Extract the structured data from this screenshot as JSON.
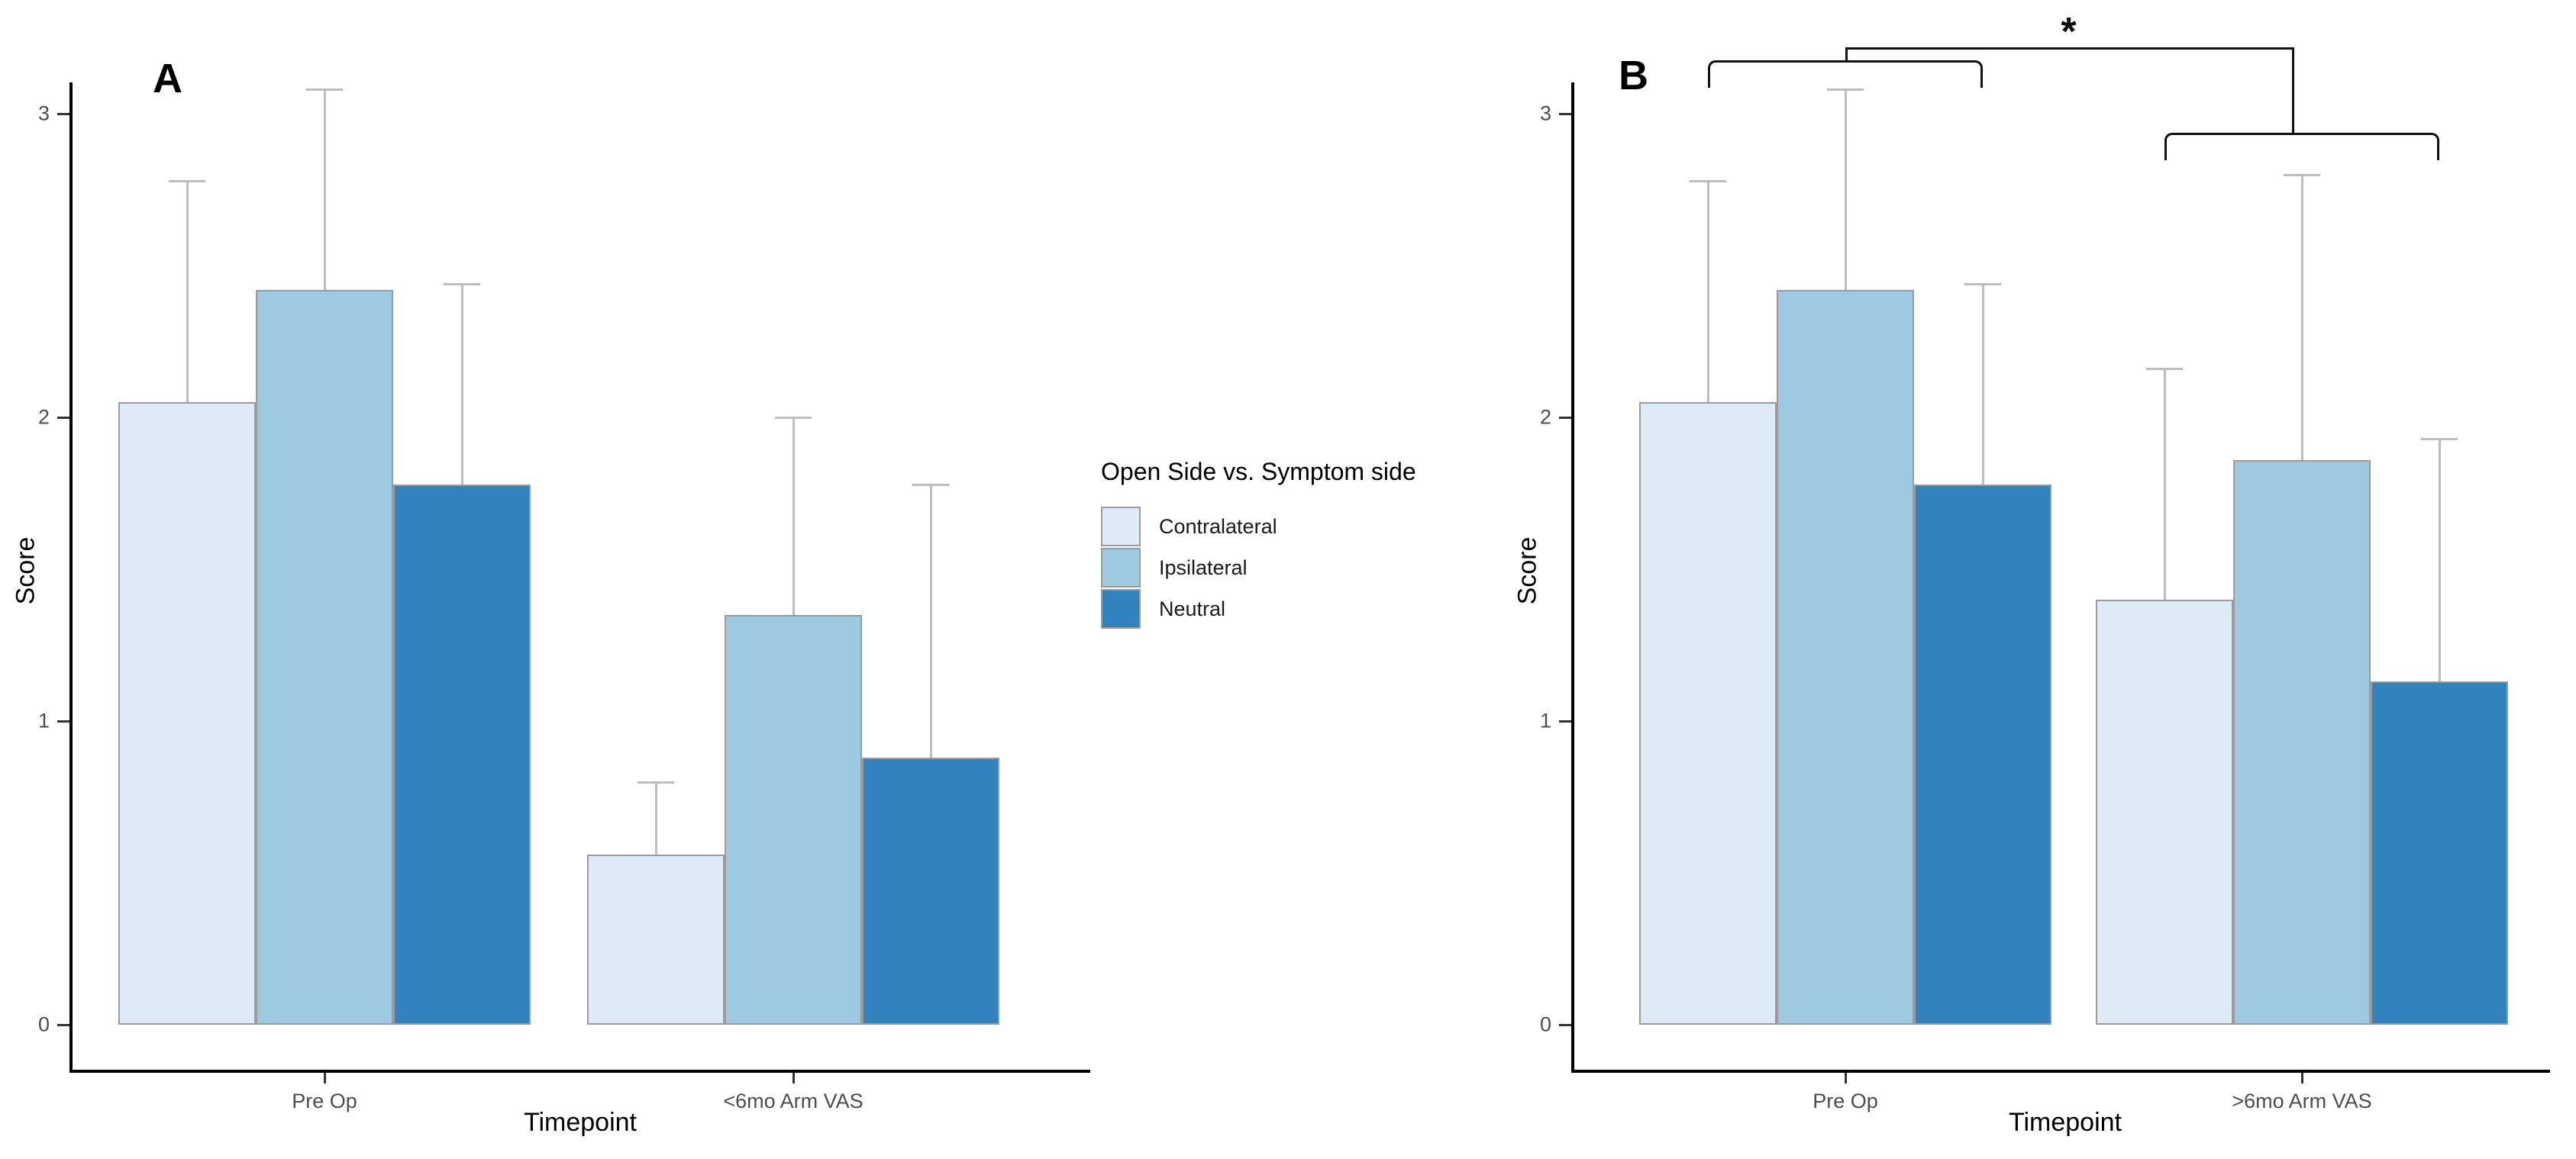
{
  "page": {
    "background": "#ffffff"
  },
  "legend": {
    "title": "Open Side vs. Symptom side",
    "items": [
      {
        "label": "Contralateral",
        "color": "#DEEBF7"
      },
      {
        "label": "Ipsilateral",
        "color": "#9ECAE1"
      },
      {
        "label": "Neutral",
        "color": "#3182BD"
      }
    ]
  },
  "panels": [
    {
      "letter": "A",
      "xlabel": "Timepoint",
      "ylabel": "Score"
    },
    {
      "letter": "B",
      "xlabel": "Timepoint",
      "ylabel": "Score"
    }
  ],
  "style": {
    "axis_color": "#000000",
    "tick_label_color": "#4d4d4d",
    "bar_border_color": "#9b9b9b",
    "error_bar_color": "#bdbdbd",
    "significance_color": "#111111"
  },
  "chart_data": [
    {
      "type": "bar",
      "panel": "A",
      "title": "",
      "categories": [
        "Pre Op",
        "<6mo Arm VAS"
      ],
      "xlabel": "Timepoint",
      "ylabel": "Score",
      "ylim": [
        0,
        3.3
      ],
      "yticks": [
        0,
        1,
        2,
        3
      ],
      "grid": false,
      "legend_position": "center-right between panels",
      "series": [
        {
          "name": "Contralateral",
          "color": "#DEEBF7",
          "values": [
            2.05,
            0.56
          ],
          "error_top": [
            2.78,
            0.8
          ]
        },
        {
          "name": "Ipsilateral",
          "color": "#9ECAE1",
          "values": [
            2.42,
            1.35
          ],
          "error_top": [
            3.08,
            2.0
          ]
        },
        {
          "name": "Neutral",
          "color": "#3182BD",
          "values": [
            1.78,
            0.88
          ],
          "error_top": [
            2.44,
            1.78
          ]
        }
      ]
    },
    {
      "type": "bar",
      "panel": "B",
      "title": "",
      "categories": [
        "Pre Op",
        ">6mo Arm VAS"
      ],
      "xlabel": "Timepoint",
      "ylabel": "Score",
      "ylim": [
        0,
        3.3
      ],
      "yticks": [
        0,
        1,
        2,
        3
      ],
      "grid": false,
      "series": [
        {
          "name": "Contralateral",
          "color": "#DEEBF7",
          "values": [
            2.05,
            1.4
          ],
          "error_top": [
            2.78,
            2.16
          ]
        },
        {
          "name": "Ipsilateral",
          "color": "#9ECAE1",
          "values": [
            2.42,
            1.86
          ],
          "error_top": [
            3.08,
            2.8
          ]
        },
        {
          "name": "Neutral",
          "color": "#3182BD",
          "values": [
            1.78,
            1.13
          ],
          "error_top": [
            2.44,
            1.93
          ]
        }
      ],
      "significance": {
        "label": "*",
        "compares": [
          "Pre Op",
          ">6mo Arm VAS"
        ]
      }
    }
  ]
}
